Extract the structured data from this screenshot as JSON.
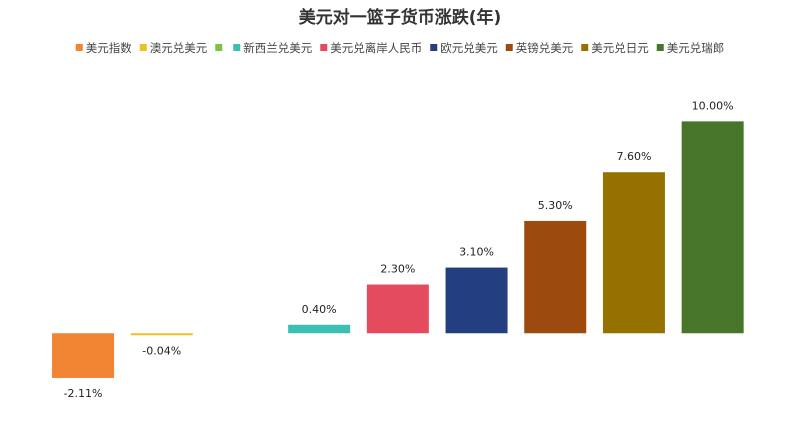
{
  "chart_data": {
    "type": "bar",
    "title": "美元对一篮子货币涨跌(年)",
    "series": [
      {
        "name": "美元指数",
        "color": "#f08432",
        "values": [
          -2.11
        ],
        "value_labels": [
          "-2.11%"
        ]
      },
      {
        "name": "澳元兑美元",
        "color": "#f0c020",
        "values": [
          -0.04
        ],
        "value_labels": [
          "-0.04%"
        ]
      },
      {
        "name": null,
        "color": "#7cc243",
        "values": [
          null
        ]
      },
      {
        "name": "新西兰兑美元",
        "color": "#3bbfb5",
        "values": [
          0.4
        ],
        "value_labels": [
          "0.40%"
        ]
      },
      {
        "name": "美元兑离岸人民币",
        "color": "#e54b5e",
        "values": [
          2.3
        ],
        "value_labels": [
          "2.30%"
        ]
      },
      {
        "name": "欧元兑美元",
        "color": "#233f80",
        "values": [
          3.1
        ],
        "value_labels": [
          "3.10%"
        ]
      },
      {
        "name": "英镑兑美元",
        "color": "#9c4a0e",
        "values": [
          5.3
        ],
        "value_labels": [
          "5.30%"
        ]
      },
      {
        "name": "美元兑日元",
        "color": "#957100",
        "values": [
          7.6
        ],
        "value_labels": [
          "7.60%"
        ]
      },
      {
        "name": "美元兑瑞郎",
        "color": "#47762a",
        "values": [
          10.0
        ],
        "value_labels": [
          "10.00%"
        ]
      }
    ],
    "ylim": [
      -4,
      12
    ]
  }
}
